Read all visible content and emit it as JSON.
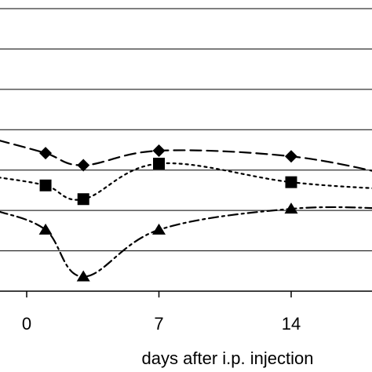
{
  "chart_data": {
    "type": "line",
    "xlabel": "days after i.p. injection",
    "ylabel": "",
    "x_ticks": [
      0,
      7,
      14
    ],
    "x_tick_labels": [
      "0",
      "7",
      "14"
    ],
    "xlim": [
      -1.5,
      19.5
    ],
    "ylim": [
      0,
      7
    ],
    "grid": true,
    "legend": "none",
    "series": [
      {
        "marker": "diamond",
        "line_style": "dashed",
        "color": "#000000",
        "x": [
          -1.5,
          1,
          3,
          7,
          14,
          19.5
        ],
        "y": [
          3.74,
          3.42,
          3.12,
          3.48,
          3.34,
          2.86
        ]
      },
      {
        "marker": "square",
        "line_style": "dotted",
        "color": "#000000",
        "x": [
          -1.5,
          1,
          3,
          7,
          14,
          19.5
        ],
        "y": [
          2.82,
          2.62,
          2.28,
          3.16,
          2.7,
          2.52
        ]
      },
      {
        "marker": "triangle",
        "line_style": "dash-dot",
        "color": "#000000",
        "x": [
          -1.5,
          1,
          3,
          7,
          14,
          19.5
        ],
        "y": [
          1.98,
          1.52,
          0.36,
          1.52,
          2.04,
          2.04
        ]
      }
    ]
  }
}
